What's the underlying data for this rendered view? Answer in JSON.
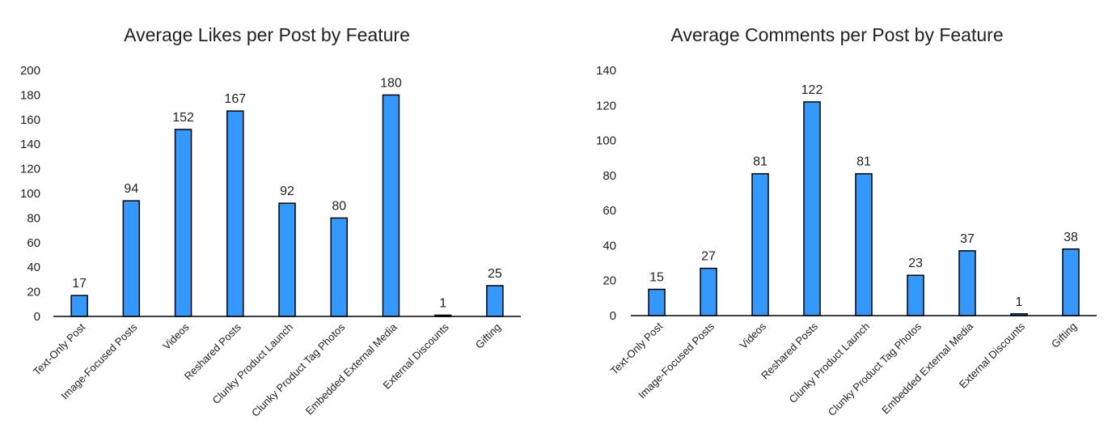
{
  "chart_data": [
    {
      "type": "bar",
      "title": "Average Likes per Post by Feature",
      "categories": [
        "Text-Only Post",
        "Image-Focused Posts",
        "Videos",
        "Reshared Posts",
        "Clunky Product Launch",
        "Clunky Product Tag Photos",
        "Embedded External Media",
        "External Discounts",
        "Gifting"
      ],
      "values": [
        17,
        94,
        152,
        167,
        92,
        80,
        180,
        1,
        25
      ],
      "ylim": [
        0,
        200
      ],
      "yticks": [
        0,
        20,
        40,
        60,
        80,
        100,
        120,
        140,
        160,
        180,
        200
      ],
      "grid": false,
      "bar_color": "#3399ff",
      "xlabel": "",
      "ylabel": ""
    },
    {
      "type": "bar",
      "title": "Average Comments per Post by Feature",
      "categories": [
        "Text-Only Post",
        "Image-Focused Posts",
        "Videos",
        "Reshared Posts",
        "Clunky Product Launch",
        "Clunky Product Tag Photos",
        "Embedded External Media",
        "External Discounts",
        "Gifting"
      ],
      "values": [
        15,
        27,
        81,
        122,
        81,
        23,
        37,
        1,
        38
      ],
      "ylim": [
        0,
        140
      ],
      "yticks": [
        0,
        20,
        40,
        60,
        80,
        100,
        120,
        140
      ],
      "grid": false,
      "bar_color": "#3399ff",
      "xlabel": "",
      "ylabel": ""
    }
  ]
}
